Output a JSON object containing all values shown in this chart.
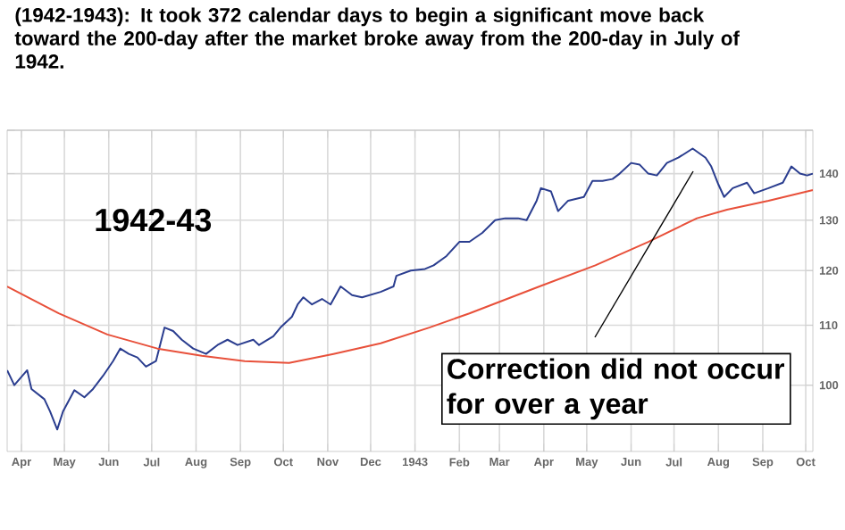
{
  "chart_data": {
    "type": "line",
    "title": "(1942-1943):  It took 372 calendar days to begin a significant move back toward the 200-day after the market broke away from the 200-day in July of 1942.",
    "log": "y",
    "grid": true,
    "xlim": [
      "1942-03-22",
      "1943-10-06"
    ],
    "xticks": [
      {
        "value": "1942-04-01",
        "label": "Apr"
      },
      {
        "value": "1942-05-01",
        "label": "May"
      },
      {
        "value": "1942-06-01",
        "label": "Jun"
      },
      {
        "value": "1942-07-01",
        "label": "Jul"
      },
      {
        "value": "1942-08-01",
        "label": "Aug"
      },
      {
        "value": "1942-09-01",
        "label": "Sep"
      },
      {
        "value": "1942-10-01",
        "label": "Oct"
      },
      {
        "value": "1942-11-01",
        "label": "Nov"
      },
      {
        "value": "1942-12-01",
        "label": "Dec"
      },
      {
        "value": "1943-01-01",
        "label": "1943"
      },
      {
        "value": "1943-02-01",
        "label": "Feb"
      },
      {
        "value": "1943-03-01",
        "label": "Mar"
      },
      {
        "value": "1943-04-01",
        "label": "Apr"
      },
      {
        "value": "1943-05-01",
        "label": "May"
      },
      {
        "value": "1943-06-01",
        "label": "Jun"
      },
      {
        "value": "1943-07-01",
        "label": "Jul"
      },
      {
        "value": "1943-08-01",
        "label": "Aug"
      },
      {
        "value": "1943-09-01",
        "label": "Sep"
      },
      {
        "value": "1943-10-01",
        "label": "Oct"
      }
    ],
    "ylim": [
      90,
      150
    ],
    "yticks": [
      100,
      110,
      120,
      130,
      140,
      {
        "value": 150,
        "label": null
      }
    ],
    "series": [
      {
        "color": "#2a3d8f",
        "x": [
          "1942-03-22",
          "1942-03-27",
          "1942-04-05",
          "1942-04-08",
          "1942-04-17",
          "1942-04-21",
          "1942-04-26",
          "1942-04-30",
          "1942-05-08",
          "1942-05-15",
          "1942-05-21",
          "1942-05-28",
          "1942-06-04",
          "1942-06-09",
          "1942-06-15",
          "1942-06-21",
          "1942-06-27",
          "1942-07-04",
          "1942-07-10",
          "1942-07-16",
          "1942-07-22",
          "1942-07-30",
          "1942-08-08",
          "1942-08-16",
          "1942-08-23",
          "1942-08-30",
          "1942-09-10",
          "1942-09-14",
          "1942-09-24",
          "1942-09-29",
          "1942-10-07",
          "1942-10-11",
          "1942-10-15",
          "1942-10-21",
          "1942-10-28",
          "1942-11-03",
          "1942-11-10",
          "1942-11-18",
          "1942-11-25",
          "1942-12-08",
          "1942-12-17",
          "1942-12-19",
          "1942-12-29",
          "1943-01-08",
          "1943-01-14",
          "1943-01-23",
          "1943-02-01",
          "1943-02-08",
          "1943-02-17",
          "1943-02-26",
          "1943-03-05",
          "1943-03-14",
          "1943-03-20",
          "1943-03-27",
          "1943-03-30",
          "1943-04-06",
          "1943-04-11",
          "1943-04-18",
          "1943-04-29",
          "1943-05-05",
          "1943-05-12",
          "1943-05-19",
          "1943-05-24",
          "1943-06-01",
          "1943-06-07",
          "1943-06-13",
          "1943-06-19",
          "1943-06-26",
          "1943-07-04",
          "1943-07-14",
          "1943-07-23",
          "1943-07-27",
          "1943-08-01",
          "1943-08-05",
          "1943-08-11",
          "1943-08-21",
          "1943-08-26",
          "1943-09-05",
          "1943-09-15",
          "1943-09-21",
          "1943-09-27",
          "1943-10-02",
          "1943-10-06"
        ],
        "values": [
          102.4,
          100.0,
          102.4,
          99.4,
          97.8,
          95.9,
          93.2,
          95.9,
          99.2,
          98.1,
          99.4,
          101.5,
          103.9,
          106.0,
          105.1,
          104.5,
          103.0,
          103.9,
          109.6,
          109.0,
          107.5,
          106.0,
          105.1,
          106.6,
          107.5,
          106.6,
          107.5,
          106.6,
          108.1,
          109.6,
          111.5,
          113.7,
          115.0,
          113.7,
          114.7,
          113.7,
          117.0,
          115.4,
          115.0,
          116.0,
          117.0,
          119.0,
          120.0,
          120.3,
          121.0,
          122.8,
          125.6,
          125.6,
          127.4,
          130.0,
          130.4,
          130.4,
          130.0,
          134.1,
          136.8,
          136.1,
          131.9,
          134.1,
          134.9,
          138.4,
          138.4,
          138.8,
          140.0,
          142.4,
          142.0,
          140.0,
          139.6,
          142.4,
          143.6,
          145.7,
          143.6,
          141.6,
          137.6,
          134.9,
          136.8,
          138.0,
          135.7,
          136.8,
          138.0,
          141.6,
          140.0,
          139.6,
          140.0
        ]
      },
      {
        "color": "#e8503a",
        "x": [
          "1942-03-22",
          "1942-04-27",
          "1942-05-31",
          "1942-07-05",
          "1942-08-05",
          "1942-09-04",
          "1942-10-05",
          "1942-11-05",
          "1942-12-08",
          "1943-01-11",
          "1943-02-08",
          "1943-03-29",
          "1943-05-07",
          "1943-06-13",
          "1943-07-17",
          "1943-08-07",
          "1943-09-05",
          "1943-10-06"
        ],
        "values": [
          117.0,
          112.1,
          108.4,
          106.0,
          104.8,
          103.9,
          103.6,
          105.1,
          106.9,
          109.6,
          112.1,
          117.0,
          121.0,
          125.6,
          130.4,
          132.2,
          134.1,
          136.4
        ]
      }
    ],
    "annotations": [
      "1942-43",
      "Correction did not occur for over a year"
    ]
  }
}
